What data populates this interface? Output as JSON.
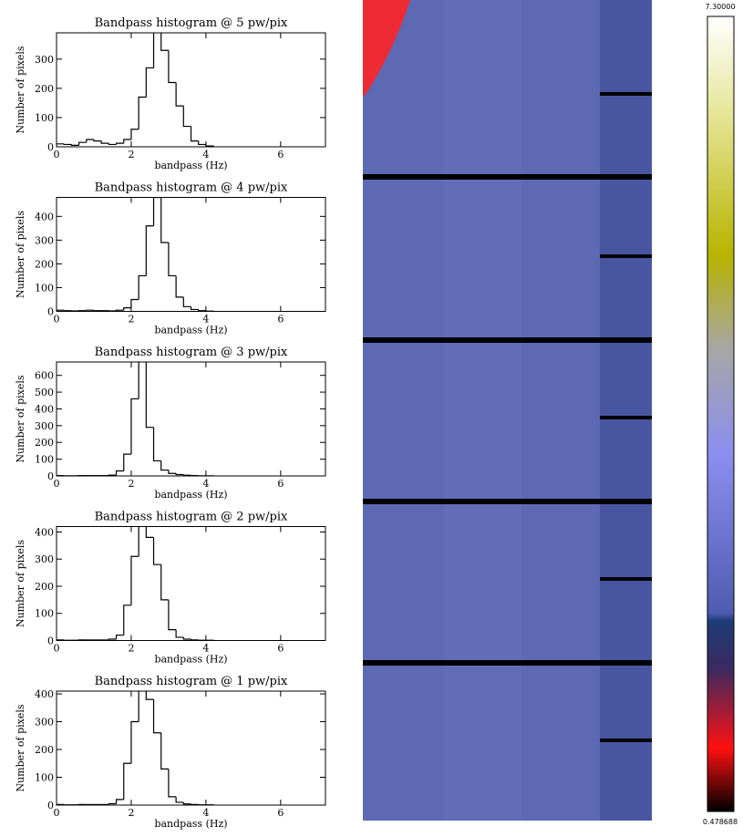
{
  "chart_data": [
    {
      "type": "histogram",
      "title": "Bandpass histogram @ 5 pw/pix",
      "x_label": "bandpass (Hz)",
      "y_label": "Number of pixels",
      "bins": [
        0,
        0.2,
        0.4,
        0.6,
        0.8,
        1.0,
        1.2,
        1.4,
        1.6,
        1.8,
        2.0,
        2.2,
        2.4,
        2.6,
        2.8,
        3.0,
        3.2,
        3.4,
        3.6,
        3.8,
        4.0,
        4.2
      ],
      "values": [
        10,
        8,
        5,
        15,
        25,
        20,
        12,
        8,
        12,
        25,
        60,
        170,
        270,
        400,
        330,
        220,
        140,
        70,
        20,
        8,
        3
      ],
      "color": "#000000",
      "xlim": [
        0,
        7.2
      ],
      "xticks": [
        0,
        2,
        4,
        6
      ],
      "ylim": [
        0,
        390
      ],
      "yticks": [
        0,
        100,
        200,
        300
      ]
    },
    {
      "type": "histogram",
      "title": "Bandpass histogram @ 4 pw/pix",
      "x_label": "bandpass (Hz)",
      "y_label": "Number of pixels",
      "bins": [
        0,
        0.2,
        0.4,
        0.6,
        0.8,
        1.0,
        1.2,
        1.4,
        1.6,
        1.8,
        2.0,
        2.2,
        2.4,
        2.6,
        2.8,
        3.0,
        3.2,
        3.4,
        3.6,
        3.8,
        4.0,
        4.2
      ],
      "values": [
        5,
        3,
        2,
        3,
        5,
        3,
        3,
        2,
        5,
        15,
        50,
        150,
        360,
        480,
        290,
        150,
        60,
        20,
        8,
        3,
        1
      ],
      "color": "#000000",
      "xlim": [
        0,
        7.2
      ],
      "xticks": [
        0,
        2,
        4,
        6
      ],
      "ylim": [
        0,
        480
      ],
      "yticks": [
        0,
        100,
        200,
        300,
        400
      ]
    },
    {
      "type": "histogram",
      "title": "Bandpass histogram @ 3 pw/pix",
      "x_label": "bandpass (Hz)",
      "y_label": "Number of pixels",
      "bins": [
        0,
        0.2,
        0.4,
        0.6,
        0.8,
        1.0,
        1.2,
        1.4,
        1.6,
        1.8,
        2.0,
        2.2,
        2.4,
        2.6,
        2.8,
        3.0,
        3.2,
        3.4,
        3.6,
        3.8,
        4.0,
        4.2
      ],
      "values": [
        2,
        1,
        1,
        2,
        2,
        2,
        2,
        5,
        30,
        130,
        460,
        690,
        290,
        90,
        35,
        15,
        8,
        4,
        2,
        1,
        1
      ],
      "color": "#000000",
      "xlim": [
        0,
        7.2
      ],
      "xticks": [
        0,
        2,
        4,
        6
      ],
      "ylim": [
        0,
        680
      ],
      "yticks": [
        0,
        100,
        200,
        300,
        400,
        500,
        600
      ]
    },
    {
      "type": "histogram",
      "title": "Bandpass histogram @ 2 pw/pix",
      "x_label": "bandpass (Hz)",
      "y_label": "Number of pixels",
      "bins": [
        0,
        0.2,
        0.4,
        0.6,
        0.8,
        1.0,
        1.2,
        1.4,
        1.6,
        1.8,
        2.0,
        2.2,
        2.4,
        2.6,
        2.8,
        3.0,
        3.2,
        3.4,
        3.6,
        3.8,
        4.0,
        4.2
      ],
      "values": [
        2,
        1,
        1,
        2,
        2,
        2,
        2,
        5,
        20,
        130,
        310,
        430,
        380,
        280,
        150,
        40,
        12,
        5,
        2,
        1,
        1
      ],
      "color": "#000000",
      "xlim": [
        0,
        7.2
      ],
      "xticks": [
        0,
        2,
        4,
        6
      ],
      "ylim": [
        0,
        420
      ],
      "yticks": [
        0,
        100,
        200,
        300,
        400
      ]
    },
    {
      "type": "histogram",
      "title": "Bandpass histogram @ 1 pw/pix",
      "x_label": "bandpass (Hz)",
      "y_label": "Number of pixels",
      "bins": [
        0,
        0.2,
        0.4,
        0.6,
        0.8,
        1.0,
        1.2,
        1.4,
        1.6,
        1.8,
        2.0,
        2.2,
        2.4,
        2.6,
        2.8,
        3.0,
        3.2,
        3.4,
        3.6,
        3.8,
        4.0,
        4.2
      ],
      "values": [
        2,
        1,
        1,
        2,
        2,
        2,
        2,
        5,
        20,
        150,
        300,
        420,
        380,
        260,
        130,
        30,
        10,
        4,
        2,
        1,
        1
      ],
      "color": "#000000",
      "xlim": [
        0,
        7.2
      ],
      "xticks": [
        0,
        2,
        4,
        6
      ],
      "ylim": [
        0,
        410
      ],
      "yticks": [
        0,
        100,
        200,
        300,
        400
      ]
    }
  ],
  "colorbar": {
    "max_label": "7.30000",
    "min_label": "0.478688"
  }
}
